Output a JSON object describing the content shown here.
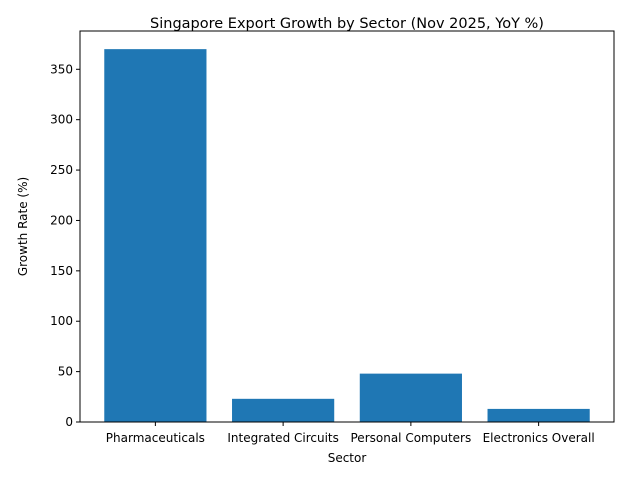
{
  "chart_data": {
    "type": "bar",
    "title": "Singapore Export Growth by Sector (Nov 2025, YoY %)",
    "xlabel": "Sector",
    "ylabel": "Growth Rate (%)",
    "categories": [
      "Pharmaceuticals",
      "Integrated Circuits",
      "Personal Computers",
      "Electronics Overall"
    ],
    "values": [
      370,
      23,
      48,
      13
    ],
    "ylim": [
      0,
      388
    ],
    "yticks": [
      0,
      50,
      100,
      150,
      200,
      250,
      300,
      350
    ],
    "bar_color": "#1f77b4",
    "grid": false,
    "legend": "none"
  }
}
